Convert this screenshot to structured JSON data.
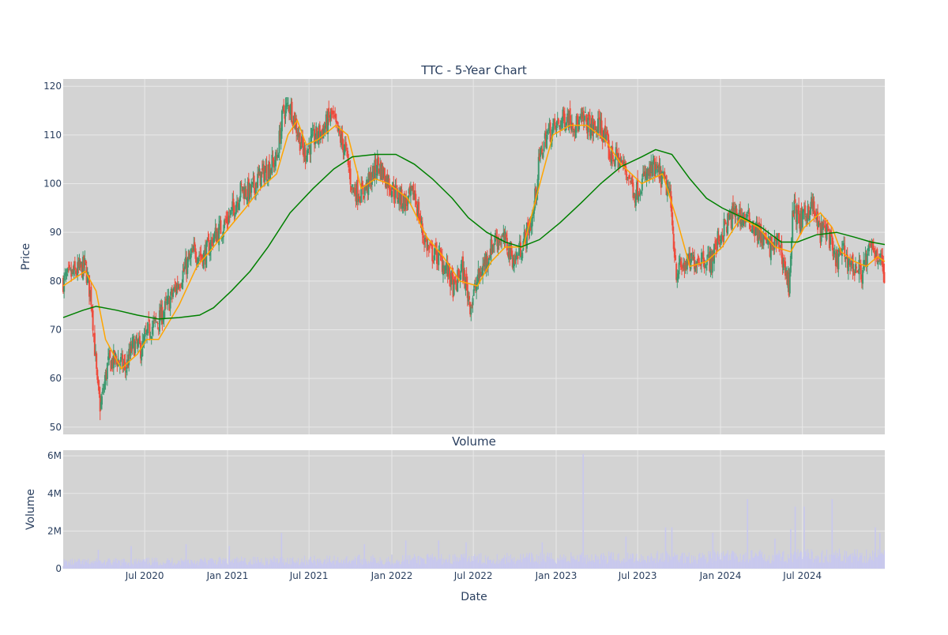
{
  "chart_data": [
    {
      "type": "candlestick",
      "title": "TTC - 5-Year Chart",
      "xlabel": "",
      "ylabel": "Price",
      "ylim": [
        48.5,
        121.5
      ],
      "y_ticks": [
        50,
        60,
        70,
        80,
        90,
        100,
        110,
        120
      ],
      "grid": true,
      "colors": {
        "plot_bg": "#d3d3d3",
        "grid": "#e8e8e8",
        "increasing": "#3d9970",
        "decreasing": "#ef4b3c",
        "ma_short": "#ffa500",
        "ma_long": "#008000",
        "text": "#2a3f5f"
      },
      "series": [
        {
          "kind": "price_close",
          "points": [
            [
              "2020-01-02",
              80
            ],
            [
              "2020-02-01",
              82
            ],
            [
              "2020-02-20",
              83
            ],
            [
              "2020-03-05",
              76
            ],
            [
              "2020-03-18",
              58
            ],
            [
              "2020-03-25",
              54
            ],
            [
              "2020-04-10",
              63
            ],
            [
              "2020-05-01",
              64
            ],
            [
              "2020-05-20",
              62
            ],
            [
              "2020-06-05",
              67
            ],
            [
              "2020-06-25",
              66
            ],
            [
              "2020-07-10",
              70
            ],
            [
              "2020-08-01",
              72
            ],
            [
              "2020-08-20",
              75
            ],
            [
              "2020-09-10",
              79
            ],
            [
              "2020-10-01",
              83
            ],
            [
              "2020-10-20",
              86
            ],
            [
              "2020-11-10",
              85
            ],
            [
              "2020-12-01",
              89
            ],
            [
              "2020-12-20",
              91
            ],
            [
              "2021-01-10",
              94
            ],
            [
              "2021-02-01",
              99
            ],
            [
              "2021-02-20",
              98
            ],
            [
              "2021-03-10",
              101
            ],
            [
              "2021-03-31",
              103
            ],
            [
              "2021-04-20",
              105
            ],
            [
              "2021-05-05",
              115
            ],
            [
              "2021-05-20",
              116
            ],
            [
              "2021-06-05",
              111
            ],
            [
              "2021-06-20",
              106
            ],
            [
              "2021-07-10",
              109
            ],
            [
              "2021-08-01",
              111
            ],
            [
              "2021-08-20",
              114
            ],
            [
              "2021-09-05",
              110
            ],
            [
              "2021-09-20",
              107
            ],
            [
              "2021-10-05",
              99
            ],
            [
              "2021-10-25",
              98
            ],
            [
              "2021-11-10",
              100
            ],
            [
              "2021-12-01",
              104
            ],
            [
              "2021-12-20",
              101
            ],
            [
              "2022-01-10",
              98
            ],
            [
              "2022-02-01",
              96
            ],
            [
              "2022-02-20",
              98
            ],
            [
              "2022-03-10",
              90
            ],
            [
              "2022-03-25",
              86
            ],
            [
              "2022-04-15",
              85
            ],
            [
              "2022-05-05",
              82
            ],
            [
              "2022-05-20",
              78
            ],
            [
              "2022-06-05",
              83
            ],
            [
              "2022-06-25",
              75
            ],
            [
              "2022-07-10",
              80
            ],
            [
              "2022-08-01",
              85
            ],
            [
              "2022-08-20",
              89
            ],
            [
              "2022-09-10",
              88
            ],
            [
              "2022-10-01",
              84
            ],
            [
              "2022-10-20",
              88
            ],
            [
              "2022-11-10",
              93
            ],
            [
              "2022-11-25",
              105
            ],
            [
              "2022-12-10",
              110
            ],
            [
              "2023-01-05",
              112
            ],
            [
              "2023-01-25",
              114
            ],
            [
              "2023-02-15",
              112
            ],
            [
              "2023-03-05",
              113
            ],
            [
              "2023-03-25",
              111
            ],
            [
              "2023-04-10",
              112
            ],
            [
              "2023-04-30",
              106
            ],
            [
              "2023-05-20",
              105
            ],
            [
              "2023-06-10",
              102
            ],
            [
              "2023-06-25",
              98
            ],
            [
              "2023-07-15",
              101
            ],
            [
              "2023-08-05",
              103
            ],
            [
              "2023-08-25",
              101
            ],
            [
              "2023-09-10",
              98
            ],
            [
              "2023-09-25",
              82
            ],
            [
              "2023-10-10",
              83
            ],
            [
              "2023-10-30",
              84
            ],
            [
              "2023-11-20",
              85
            ],
            [
              "2023-12-10",
              84
            ],
            [
              "2023-12-25",
              88
            ],
            [
              "2024-01-10",
              91
            ],
            [
              "2024-02-01",
              94
            ],
            [
              "2024-02-20",
              93
            ],
            [
              "2024-03-10",
              92
            ],
            [
              "2024-04-01",
              89
            ],
            [
              "2024-04-20",
              87
            ],
            [
              "2024-05-10",
              88
            ],
            [
              "2024-06-01",
              79
            ],
            [
              "2024-06-10",
              95
            ],
            [
              "2024-06-30",
              92
            ],
            [
              "2024-07-20",
              96
            ],
            [
              "2024-08-10",
              90
            ],
            [
              "2024-08-25",
              91
            ],
            [
              "2024-09-10",
              84
            ],
            [
              "2024-09-30",
              86
            ],
            [
              "2024-10-20",
              83
            ],
            [
              "2024-11-10",
              82
            ],
            [
              "2024-12-01",
              87
            ],
            [
              "2024-12-20",
              85
            ],
            [
              "2024-12-31",
              81
            ]
          ]
        },
        {
          "kind": "moving_average_short",
          "points": [
            [
              "2020-01-02",
              79
            ],
            [
              "2020-02-20",
              82
            ],
            [
              "2020-03-15",
              78
            ],
            [
              "2020-04-05",
              68
            ],
            [
              "2020-05-10",
              62
            ],
            [
              "2020-06-15",
              65
            ],
            [
              "2020-07-05",
              68
            ],
            [
              "2020-08-01",
              68
            ],
            [
              "2020-09-15",
              75
            ],
            [
              "2020-10-25",
              83
            ],
            [
              "2020-12-01",
              87
            ],
            [
              "2021-01-05",
              91
            ],
            [
              "2021-02-10",
              95
            ],
            [
              "2021-03-15",
              99
            ],
            [
              "2021-04-20",
              102
            ],
            [
              "2021-05-15",
              110
            ],
            [
              "2021-06-05",
              113
            ],
            [
              "2021-06-25",
              108
            ],
            [
              "2021-07-20",
              109
            ],
            [
              "2021-08-30",
              112
            ],
            [
              "2021-09-25",
              110
            ],
            [
              "2021-10-25",
              99
            ],
            [
              "2021-11-25",
              101
            ],
            [
              "2021-12-25",
              100
            ],
            [
              "2022-02-05",
              97
            ],
            [
              "2022-03-20",
              89
            ],
            [
              "2022-04-25",
              85
            ],
            [
              "2022-06-01",
              80
            ],
            [
              "2022-07-10",
              79
            ],
            [
              "2022-08-10",
              84
            ],
            [
              "2022-09-10",
              87
            ],
            [
              "2022-10-20",
              87
            ],
            [
              "2022-11-20",
              98
            ],
            [
              "2022-12-25",
              110
            ],
            [
              "2023-02-01",
              112
            ],
            [
              "2023-03-10",
              112
            ],
            [
              "2023-04-20",
              109
            ],
            [
              "2023-05-25",
              104
            ],
            [
              "2023-07-10",
              100
            ],
            [
              "2023-08-25",
              102
            ],
            [
              "2023-09-25",
              93
            ],
            [
              "2023-10-25",
              83
            ],
            [
              "2023-12-01",
              84
            ],
            [
              "2024-01-05",
              87
            ],
            [
              "2024-02-15",
              93
            ],
            [
              "2024-03-25",
              91
            ],
            [
              "2024-05-01",
              87
            ],
            [
              "2024-06-05",
              86
            ],
            [
              "2024-07-05",
              91
            ],
            [
              "2024-08-10",
              94
            ],
            [
              "2024-09-05",
              91
            ],
            [
              "2024-09-25",
              86
            ],
            [
              "2024-10-25",
              84
            ],
            [
              "2024-11-20",
              83
            ],
            [
              "2024-12-15",
              85
            ],
            [
              "2024-12-31",
              84
            ]
          ]
        },
        {
          "kind": "moving_average_long",
          "points": [
            [
              "2020-01-02",
              72.5
            ],
            [
              "2020-02-15",
              74
            ],
            [
              "2020-03-15",
              74.8
            ],
            [
              "2020-04-30",
              74
            ],
            [
              "2020-06-15",
              73
            ],
            [
              "2020-07-31",
              72.2
            ],
            [
              "2020-09-15",
              72.5
            ],
            [
              "2020-10-31",
              73
            ],
            [
              "2020-12-01",
              74.5
            ],
            [
              "2021-01-10",
              78
            ],
            [
              "2021-02-20",
              82
            ],
            [
              "2021-04-01",
              87
            ],
            [
              "2021-05-20",
              94
            ],
            [
              "2021-07-10",
              99
            ],
            [
              "2021-08-25",
              103
            ],
            [
              "2021-10-05",
              105.5
            ],
            [
              "2021-11-25",
              106
            ],
            [
              "2022-01-10",
              106
            ],
            [
              "2022-02-20",
              104
            ],
            [
              "2022-04-01",
              101
            ],
            [
              "2022-05-15",
              97
            ],
            [
              "2022-06-20",
              93
            ],
            [
              "2022-07-31",
              90
            ],
            [
              "2022-09-10",
              88
            ],
            [
              "2022-10-15",
              87
            ],
            [
              "2022-11-25",
              88.5
            ],
            [
              "2023-01-10",
              92
            ],
            [
              "2023-02-25",
              96
            ],
            [
              "2023-04-10",
              100
            ],
            [
              "2023-05-25",
              103.5
            ],
            [
              "2023-07-10",
              105.5
            ],
            [
              "2023-08-10",
              107
            ],
            [
              "2023-09-15",
              106
            ],
            [
              "2023-10-25",
              101
            ],
            [
              "2023-12-01",
              97
            ],
            [
              "2024-01-05",
              95
            ],
            [
              "2024-02-20",
              93
            ],
            [
              "2024-04-01",
              91
            ],
            [
              "2024-05-15",
              88
            ],
            [
              "2024-06-20",
              88
            ],
            [
              "2024-08-01",
              89.5
            ],
            [
              "2024-09-15",
              90
            ],
            [
              "2024-10-25",
              89
            ],
            [
              "2024-12-01",
              88
            ],
            [
              "2024-12-31",
              87.5
            ]
          ]
        }
      ]
    },
    {
      "type": "bar",
      "title": "Volume",
      "xlabel": "Date",
      "ylabel": "Volume",
      "ylim": [
        0,
        6300000
      ],
      "y_ticks": [
        0,
        2000000,
        4000000,
        6000000
      ],
      "y_tick_labels": [
        "0",
        "2M",
        "4M",
        "6M"
      ],
      "x_ticks": [
        "2020-07-01",
        "2021-01-01",
        "2021-07-01",
        "2022-01-01",
        "2022-07-01",
        "2023-01-01",
        "2023-07-01",
        "2024-01-01",
        "2024-07-01"
      ],
      "x_tick_labels": [
        "Jul 2020",
        "Jan 2021",
        "Jul 2021",
        "Jan 2022",
        "Jul 2022",
        "Jan 2023",
        "Jul 2023",
        "Jan 2024",
        "Jul 2024"
      ],
      "x_range": [
        "2020-01-02",
        "2024-12-31"
      ],
      "grid": true,
      "colors": {
        "plot_bg": "#d3d3d3",
        "bar": "#c8c8ee",
        "grid": "#e8e8e8",
        "text": "#2a3f5f"
      },
      "series": [
        {
          "name": "",
          "spikes": [
            [
              "2020-03-20",
              1000000
            ],
            [
              "2020-06-01",
              1200000
            ],
            [
              "2020-10-01",
              1300000
            ],
            [
              "2021-01-05",
              1200000
            ],
            [
              "2021-05-01",
              1900000
            ],
            [
              "2021-11-01",
              1300000
            ],
            [
              "2022-02-01",
              1500000
            ],
            [
              "2022-04-15",
              1500000
            ],
            [
              "2022-06-15",
              1400000
            ],
            [
              "2022-12-01",
              1400000
            ],
            [
              "2023-03-02",
              6100000
            ],
            [
              "2023-06-05",
              1700000
            ],
            [
              "2023-09-01",
              2200000
            ],
            [
              "2023-09-15",
              2200000
            ],
            [
              "2023-12-15",
              1900000
            ],
            [
              "2024-03-01",
              3700000
            ],
            [
              "2024-05-01",
              1600000
            ],
            [
              "2024-06-05",
              2100000
            ],
            [
              "2024-06-15",
              3300000
            ],
            [
              "2024-07-05",
              3300000
            ],
            [
              "2024-09-05",
              3700000
            ],
            [
              "2024-12-10",
              2200000
            ],
            [
              "2024-12-20",
              1900000
            ]
          ]
        }
      ]
    }
  ]
}
